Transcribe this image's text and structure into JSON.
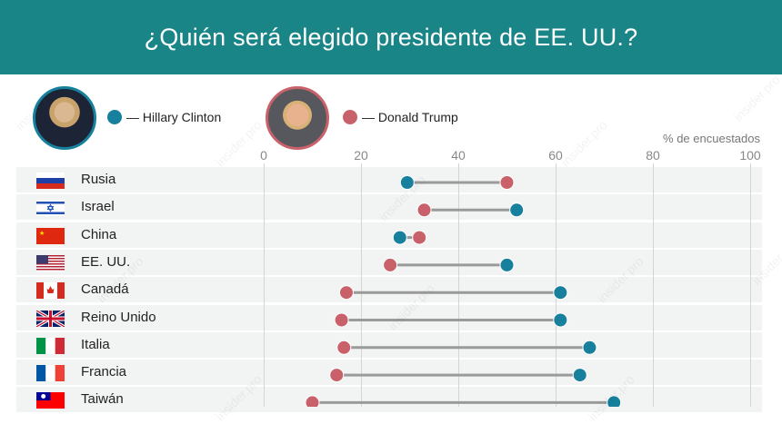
{
  "title": "¿Quién será elegido presidente de EE. UU.?",
  "legend": [
    {
      "label": "— Hillary Clinton",
      "color": "#17809c"
    },
    {
      "label": "— Donald Trump",
      "color": "#c9616a"
    }
  ],
  "watermark": "insider.pro",
  "chart_data": {
    "type": "dumbbell",
    "xlabel": "% de encuestados",
    "xlim": [
      0,
      100
    ],
    "xticks": [
      "0",
      "20",
      "40",
      "60",
      "80",
      "100"
    ],
    "grid": true,
    "legend_position": "top-left",
    "categories": [
      "Rusia",
      "Israel",
      "China",
      "EE. UU.",
      "Canadá",
      "Reino Unido",
      "Italia",
      "Francia",
      "Taiwán"
    ],
    "series": [
      {
        "name": "Hillary Clinton",
        "color": "#17809c",
        "values": [
          29.5,
          52,
          28,
          50,
          61,
          61,
          67,
          65,
          72
        ]
      },
      {
        "name": "Donald Trump",
        "color": "#c9616a",
        "values": [
          50,
          33,
          32,
          26,
          17,
          16,
          16.5,
          15,
          10
        ]
      }
    ]
  }
}
